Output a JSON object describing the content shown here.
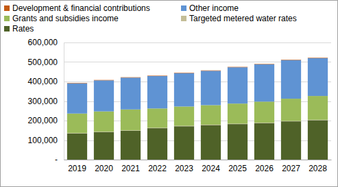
{
  "chart_data": {
    "type": "bar",
    "stacked": true,
    "grid": true,
    "legend": "top",
    "categories": [
      "2019",
      "2020",
      "2021",
      "2022",
      "2023",
      "2024",
      "2025",
      "2026",
      "2027",
      "2028"
    ],
    "series": [
      {
        "name": "Rates",
        "color": "#4f6228",
        "values": [
          134000,
          141000,
          148000,
          161000,
          171000,
          177000,
          182000,
          187000,
          196000,
          202000
        ]
      },
      {
        "name": "Targeted metered water rates",
        "color": "#c4bd97",
        "values": [
          2000,
          2000,
          2000,
          2000,
          2000,
          2000,
          2000,
          2000,
          2000,
          2000
        ]
      },
      {
        "name": "Grants and subsidies income",
        "color": "#9bbb59",
        "values": [
          100000,
          104000,
          107000,
          99000,
          99000,
          100000,
          103000,
          108000,
          114000,
          122000
        ]
      },
      {
        "name": "Other income",
        "color": "#5f93d3",
        "values": [
          155000,
          159000,
          163000,
          166000,
          171000,
          176000,
          186000,
          191000,
          198000,
          194000
        ]
      },
      {
        "name": "Development & financial contributions",
        "color": "#c55a11",
        "values": [
          2000,
          2000,
          2000,
          2000,
          2000,
          2000,
          2000,
          2000,
          2000,
          2000
        ]
      }
    ],
    "ylim": [
      0,
      600000
    ],
    "yticks": [
      {
        "value": 0,
        "label": "-"
      },
      {
        "value": 100000,
        "label": "100,000"
      },
      {
        "value": 200000,
        "label": "200,000"
      },
      {
        "value": 300000,
        "label": "300,000"
      },
      {
        "value": 400000,
        "label": "400,000"
      },
      {
        "value": 500000,
        "label": "500,000"
      },
      {
        "value": 600000,
        "label": "600,000"
      }
    ]
  }
}
